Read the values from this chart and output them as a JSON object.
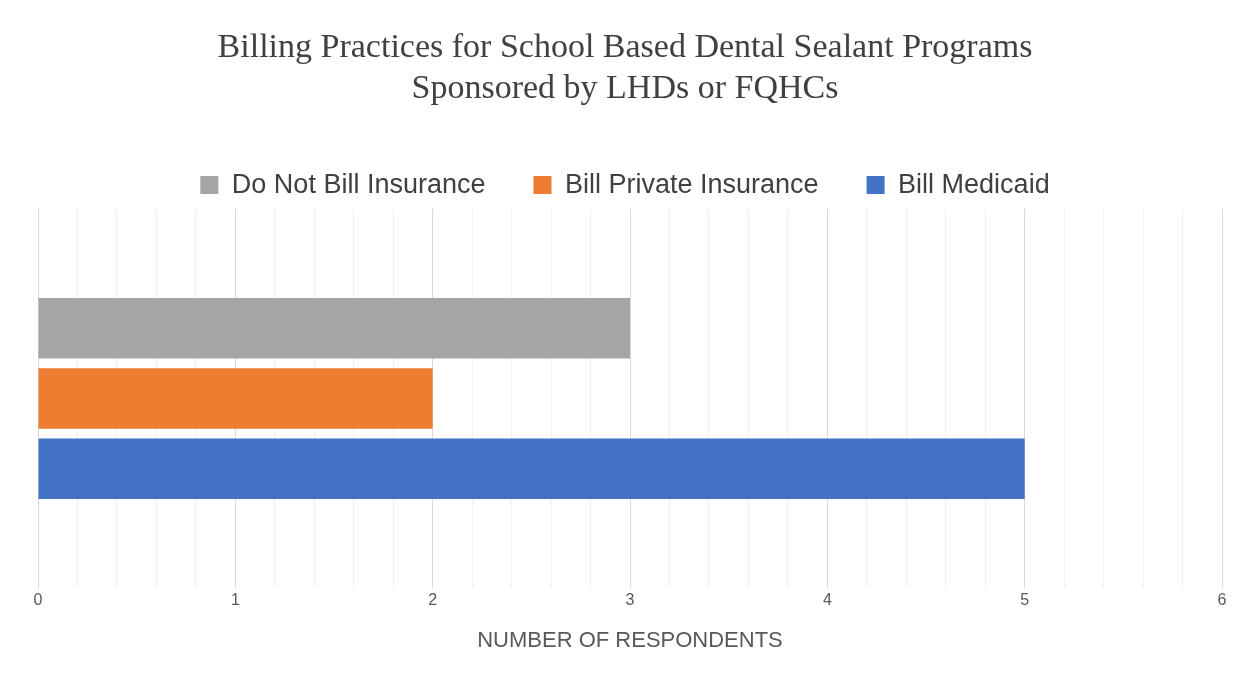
{
  "chart_data": {
    "type": "bar",
    "orientation": "horizontal",
    "title": "Billing Practices for School Based Dental Sealant Programs Sponsored by LHDs or FQHCs",
    "xlabel": "NUMBER OF RESPONDENTS",
    "categories": [
      null
    ],
    "series": [
      {
        "name": "Do Not Bill Insurance",
        "color": "#a5a5a5",
        "values": [
          3
        ]
      },
      {
        "name": "Bill Private Insurance",
        "color": "#ed7d31",
        "values": [
          2
        ]
      },
      {
        "name": "Bill Medicaid",
        "color": "#4472c4",
        "values": [
          5
        ]
      }
    ],
    "xlim": [
      0,
      6
    ],
    "xticks": [
      0,
      {
        "value": 0.2,
        "label": null
      },
      {
        "value": 0.4,
        "label": null
      },
      {
        "value": 0.6,
        "label": null
      },
      {
        "value": 0.8,
        "label": null
      },
      1,
      {
        "value": 1.2,
        "label": null
      },
      {
        "value": 1.4,
        "label": null
      },
      {
        "value": 1.6,
        "label": null
      },
      {
        "value": 1.8,
        "label": null
      },
      2,
      {
        "value": 2.2,
        "label": null
      },
      {
        "value": 2.4,
        "label": null
      },
      {
        "value": 2.6,
        "label": null
      },
      {
        "value": 2.8,
        "label": null
      },
      3,
      {
        "value": 3.2,
        "label": null
      },
      {
        "value": 3.4,
        "label": null
      },
      {
        "value": 3.6,
        "label": null
      },
      {
        "value": 3.8,
        "label": null
      },
      4,
      {
        "value": 4.2,
        "label": null
      },
      {
        "value": 4.4,
        "label": null
      },
      {
        "value": 4.6,
        "label": null
      },
      {
        "value": 4.8,
        "label": null
      },
      5,
      {
        "value": 5.2,
        "label": null
      },
      {
        "value": 5.4,
        "label": null
      },
      {
        "value": 5.6,
        "label": null
      },
      {
        "value": 5.8,
        "label": null
      },
      6
    ],
    "grid": "x",
    "legend": "top"
  }
}
